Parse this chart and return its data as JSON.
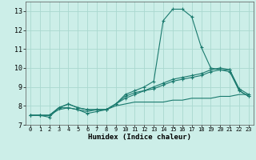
{
  "xlabel": "Humidex (Indice chaleur)",
  "bg_color": "#cceee8",
  "grid_color": "#aad8d0",
  "line_color": "#1a7a6e",
  "xlim": [
    -0.5,
    23.5
  ],
  "ylim": [
    7,
    13.5
  ],
  "yticks": [
    7,
    8,
    9,
    10,
    11,
    12,
    13
  ],
  "xticks": [
    0,
    1,
    2,
    3,
    4,
    5,
    6,
    7,
    8,
    9,
    10,
    11,
    12,
    13,
    14,
    15,
    16,
    17,
    18,
    19,
    20,
    21,
    22,
    23
  ],
  "line1_x": [
    0,
    1,
    2,
    3,
    4,
    5,
    6,
    7,
    8,
    9,
    10,
    11,
    12,
    13,
    14,
    15,
    16,
    17,
    18,
    19,
    20,
    21,
    22,
    23
  ],
  "line1_y": [
    7.5,
    7.5,
    7.4,
    7.9,
    7.9,
    7.8,
    7.6,
    7.7,
    7.8,
    8.1,
    8.6,
    8.8,
    9.0,
    9.3,
    12.5,
    13.1,
    13.1,
    12.7,
    11.1,
    10.0,
    9.9,
    9.9,
    8.8,
    8.5
  ],
  "line2_x": [
    0,
    1,
    2,
    3,
    4,
    5,
    6,
    7,
    8,
    9,
    10,
    11,
    12,
    13,
    14,
    15,
    16,
    17,
    18,
    19,
    20,
    21,
    22,
    23
  ],
  "line2_y": [
    7.5,
    7.5,
    7.5,
    7.9,
    8.1,
    7.9,
    7.8,
    7.8,
    7.8,
    8.1,
    8.5,
    8.7,
    8.8,
    9.0,
    9.2,
    9.4,
    9.5,
    9.6,
    9.7,
    9.9,
    10.0,
    9.9,
    8.9,
    8.6
  ],
  "line3_x": [
    0,
    1,
    2,
    3,
    4,
    5,
    6,
    7,
    8,
    9,
    10,
    11,
    12,
    13,
    14,
    15,
    16,
    17,
    18,
    19,
    20,
    21,
    22,
    23
  ],
  "line3_y": [
    7.5,
    7.5,
    7.5,
    7.9,
    8.1,
    7.9,
    7.8,
    7.8,
    7.8,
    8.1,
    8.4,
    8.6,
    8.8,
    8.9,
    9.1,
    9.3,
    9.4,
    9.5,
    9.6,
    9.8,
    9.9,
    9.8,
    8.8,
    8.5
  ],
  "line4_x": [
    0,
    1,
    2,
    3,
    4,
    5,
    6,
    7,
    8,
    9,
    10,
    11,
    12,
    13,
    14,
    15,
    16,
    17,
    18,
    19,
    20,
    21,
    22,
    23
  ],
  "line4_y": [
    7.5,
    7.5,
    7.5,
    7.8,
    7.9,
    7.8,
    7.7,
    7.8,
    7.8,
    8.0,
    8.1,
    8.2,
    8.2,
    8.2,
    8.2,
    8.3,
    8.3,
    8.4,
    8.4,
    8.4,
    8.5,
    8.5,
    8.6,
    8.6
  ]
}
